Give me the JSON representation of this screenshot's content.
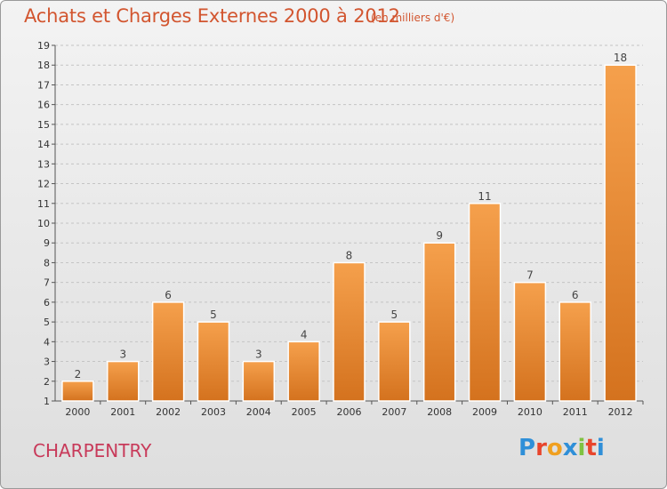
{
  "header": {
    "title": "Achats et Charges Externes 2000 à 2012",
    "subtitle": "(en milliers d'€)"
  },
  "footer": {
    "commune": "CHARPENTRY",
    "logo_letters": [
      "P",
      "r",
      "o",
      "x",
      "i",
      "t",
      "i"
    ]
  },
  "colors": {
    "accent": "#d2552f",
    "commune": "#c83a5a",
    "bar_light": "#f5a04c",
    "bar_dark": "#d4721e",
    "logo": [
      "#2f8fd8",
      "#e8452c",
      "#f0a020",
      "#2f8fd8",
      "#7fc241",
      "#e8452c",
      "#2f8fd8"
    ]
  },
  "chart_data": {
    "type": "bar",
    "categories": [
      "2000",
      "2001",
      "2002",
      "2003",
      "2004",
      "2005",
      "2006",
      "2007",
      "2008",
      "2009",
      "2010",
      "2011",
      "2012"
    ],
    "values": [
      2,
      3,
      6,
      5,
      3,
      4,
      8,
      5,
      9,
      11,
      7,
      6,
      18
    ],
    "title": "Achats et Charges Externes 2000 à 2012",
    "subtitle": "(en milliers d'€)",
    "xlabel": "",
    "ylabel": "",
    "ylim": [
      1,
      19
    ],
    "yticks": [
      1,
      2,
      3,
      4,
      5,
      6,
      7,
      8,
      9,
      10,
      11,
      12,
      13,
      14,
      15,
      16,
      17,
      18,
      19
    ],
    "grid": "horizontal dashed",
    "legend": "none"
  }
}
